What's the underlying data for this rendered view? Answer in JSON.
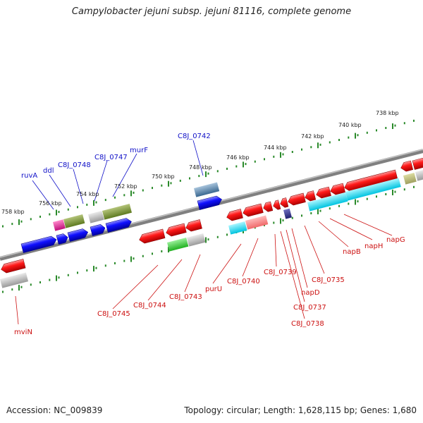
{
  "title": "Campylobacter jejuni subsp. jejuni 81116, complete genome",
  "footer": {
    "accession": "Accession: NC_009839",
    "summary": "Topology: circular; Length: 1,628,115 bp; Genes: 1,680"
  },
  "colors": {
    "forward_label": "#1010c8",
    "reverse_label": "#cc1010",
    "backbone": "#808080",
    "tick": "#2a8a2a"
  },
  "kbp_labels": [
    "758 kbp",
    "756 kbp",
    "754 kbp",
    "752 kbp",
    "750 kbp",
    "748 kbp",
    "746 kbp",
    "744 kbp",
    "742 kbp",
    "740 kbp",
    "738 kbp"
  ],
  "forward_labels": [
    "ruvA",
    "ddl",
    "C8J_0748",
    "C8J_0747",
    "murF",
    "C8J_0742"
  ],
  "reverse_labels": [
    "mviN",
    "C8J_0745",
    "C8J_0744",
    "C8J_0743",
    "purU",
    "C8J_0740",
    "C8J_0739",
    "C8J_0738",
    "C8J_0737",
    "napD",
    "C8J_0735",
    "napB",
    "napH",
    "napG"
  ]
}
